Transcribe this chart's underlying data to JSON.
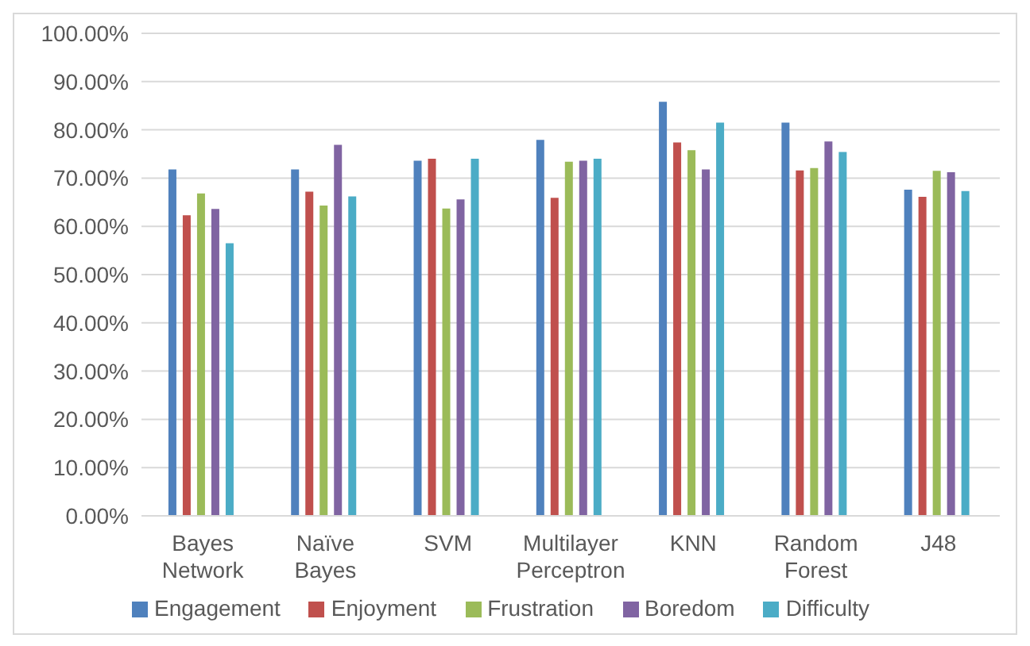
{
  "chart_data": {
    "type": "bar",
    "categories": [
      "Bayes Network",
      "Naïve Bayes",
      "SVM",
      "Multilayer Perceptron",
      "KNN",
      "Random Forest",
      "J48"
    ],
    "series": [
      {
        "name": "Engagement",
        "color": "#4f81bd",
        "values": [
          71.8,
          71.8,
          73.6,
          77.9,
          85.8,
          81.5,
          67.6
        ]
      },
      {
        "name": "Enjoyment",
        "color": "#c0504d",
        "values": [
          62.3,
          67.2,
          74.0,
          65.9,
          77.4,
          71.6,
          66.1
        ]
      },
      {
        "name": "Frustration",
        "color": "#9bbb59",
        "values": [
          66.8,
          64.3,
          63.7,
          73.4,
          75.8,
          72.1,
          71.5
        ]
      },
      {
        "name": "Boredom",
        "color": "#8064a2",
        "values": [
          63.6,
          76.9,
          65.6,
          73.6,
          71.8,
          77.6,
          71.2
        ]
      },
      {
        "name": "Difficulty",
        "color": "#4bacc6",
        "values": [
          56.5,
          66.2,
          74.0,
          74.0,
          81.5,
          75.4,
          67.3
        ]
      }
    ],
    "ylim": [
      0,
      100
    ],
    "yticks": [
      {
        "value": 0,
        "label": "0.00%"
      },
      {
        "value": 10,
        "label": "10.00%"
      },
      {
        "value": 20,
        "label": "20.00%"
      },
      {
        "value": 30,
        "label": "30.00%"
      },
      {
        "value": 40,
        "label": "40.00%"
      },
      {
        "value": 50,
        "label": "50.00%"
      },
      {
        "value": 60,
        "label": "60.00%"
      },
      {
        "value": 70,
        "label": "70.00%"
      },
      {
        "value": 80,
        "label": "80.00%"
      },
      {
        "value": 90,
        "label": "90.00%"
      },
      {
        "value": 100,
        "label": "100.00%"
      }
    ],
    "grid": "y",
    "legend": "bottom"
  }
}
